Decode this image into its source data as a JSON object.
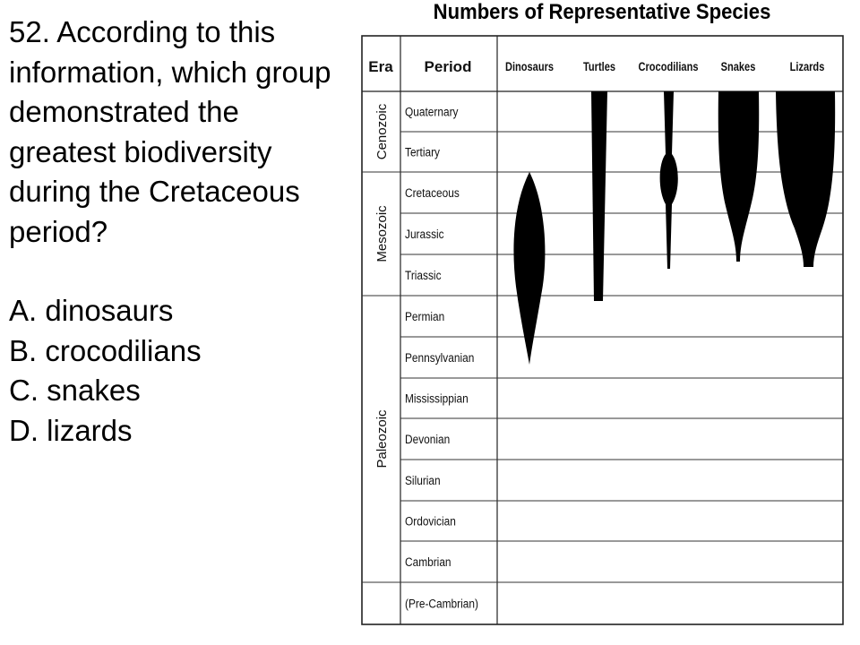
{
  "question": {
    "stem": "52. According to this information, which group demonstrated the greatest biodiversity during the Cretaceous period?",
    "choices": [
      "A. dinosaurs",
      "B. crocodilians",
      "C. snakes",
      "D. lizards"
    ]
  },
  "chart": {
    "title": "Numbers of Representative Species",
    "header_era": "Era",
    "header_period": "Period",
    "groups": [
      "Dinosaurs",
      "Turtles",
      "Crocodilians",
      "Snakes",
      "Lizards"
    ],
    "periods": [
      "Quaternary",
      "Tertiary",
      "Cretaceous",
      "Jurassic",
      "Triassic",
      "Permian",
      "Pennsylvanian",
      "Mississippian",
      "Devonian",
      "Silurian",
      "Ordovician",
      "Cambrian",
      "(Pre-Cambrian)"
    ],
    "eras": [
      {
        "name": "Cenozoic",
        "periods": [
          "Quaternary",
          "Tertiary"
        ]
      },
      {
        "name": "Mesozoic",
        "periods": [
          "Cretaceous",
          "Jurassic",
          "Triassic"
        ]
      },
      {
        "name": "Paleozoic",
        "periods": [
          "Permian",
          "Pennsylvanian",
          "Mississippian",
          "Devonian",
          "Silurian",
          "Ordovician",
          "Cambrian"
        ]
      }
    ],
    "fill_color": "#000000"
  }
}
